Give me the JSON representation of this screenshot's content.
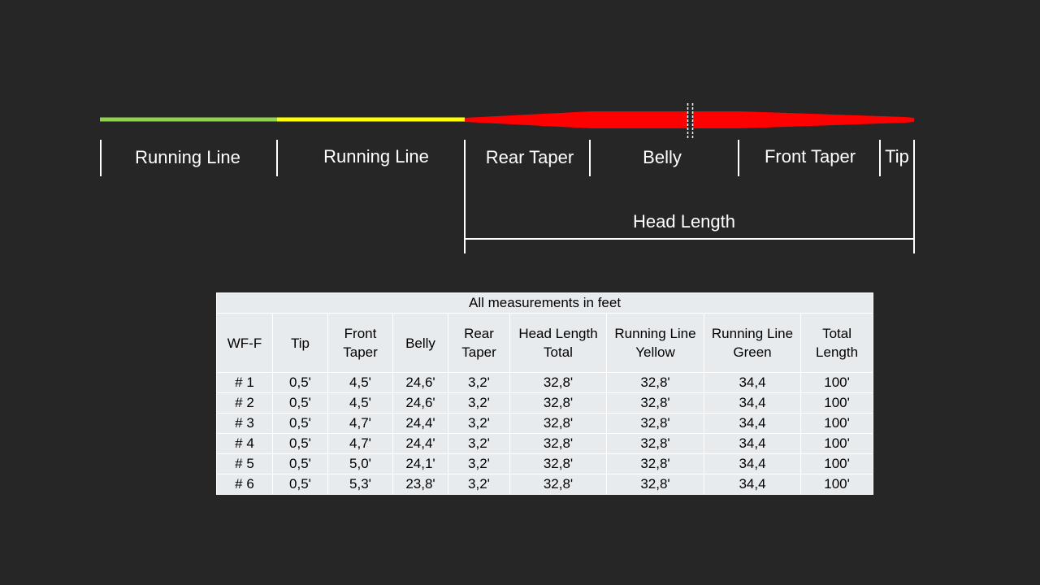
{
  "diagram": {
    "segments": [
      {
        "key": "running-line-green",
        "label": "Running Line",
        "color": "#92d050"
      },
      {
        "key": "running-line-yellow",
        "label": "Running Line",
        "color": "#ffff00"
      },
      {
        "key": "rear-taper",
        "label": "Rear Taper",
        "color": "#ff0000"
      },
      {
        "key": "belly",
        "label": "Belly",
        "color": "#ff0000"
      },
      {
        "key": "front-taper",
        "label": "Front Taper",
        "color": "#ff0000"
      },
      {
        "key": "tip",
        "label": "Tip",
        "color": "#ff0000"
      }
    ],
    "head_length_label": "Head Length"
  },
  "table": {
    "caption": "All measurements in feet",
    "headers": [
      "WF-F",
      "Tip",
      "Front Taper",
      "Belly",
      "Rear Taper",
      "Head Length Total",
      "Running Line Yellow",
      "Running Line Green",
      "Total Length"
    ],
    "rows": [
      [
        "# 1",
        "0,5'",
        "4,5'",
        "24,6'",
        "3,2'",
        "32,8'",
        "32,8'",
        "34,4",
        "100'"
      ],
      [
        "# 2",
        "0,5'",
        "4,5'",
        "24,6'",
        "3,2'",
        "32,8'",
        "32,8'",
        "34,4",
        "100'"
      ],
      [
        "# 3",
        "0,5'",
        "4,7'",
        "24,4'",
        "3,2'",
        "32,8'",
        "32,8'",
        "34,4",
        "100'"
      ],
      [
        "# 4",
        "0,5'",
        "4,7'",
        "24,4'",
        "3,2'",
        "32,8'",
        "32,8'",
        "34,4",
        "100'"
      ],
      [
        "# 5",
        "0,5'",
        "5,0'",
        "24,1'",
        "3,2'",
        "32,8'",
        "32,8'",
        "34,4",
        "100'"
      ],
      [
        "# 6",
        "0,5'",
        "5,3'",
        "23,8'",
        "3,2'",
        "32,8'",
        "32,8'",
        "34,4",
        "100'"
      ]
    ]
  }
}
